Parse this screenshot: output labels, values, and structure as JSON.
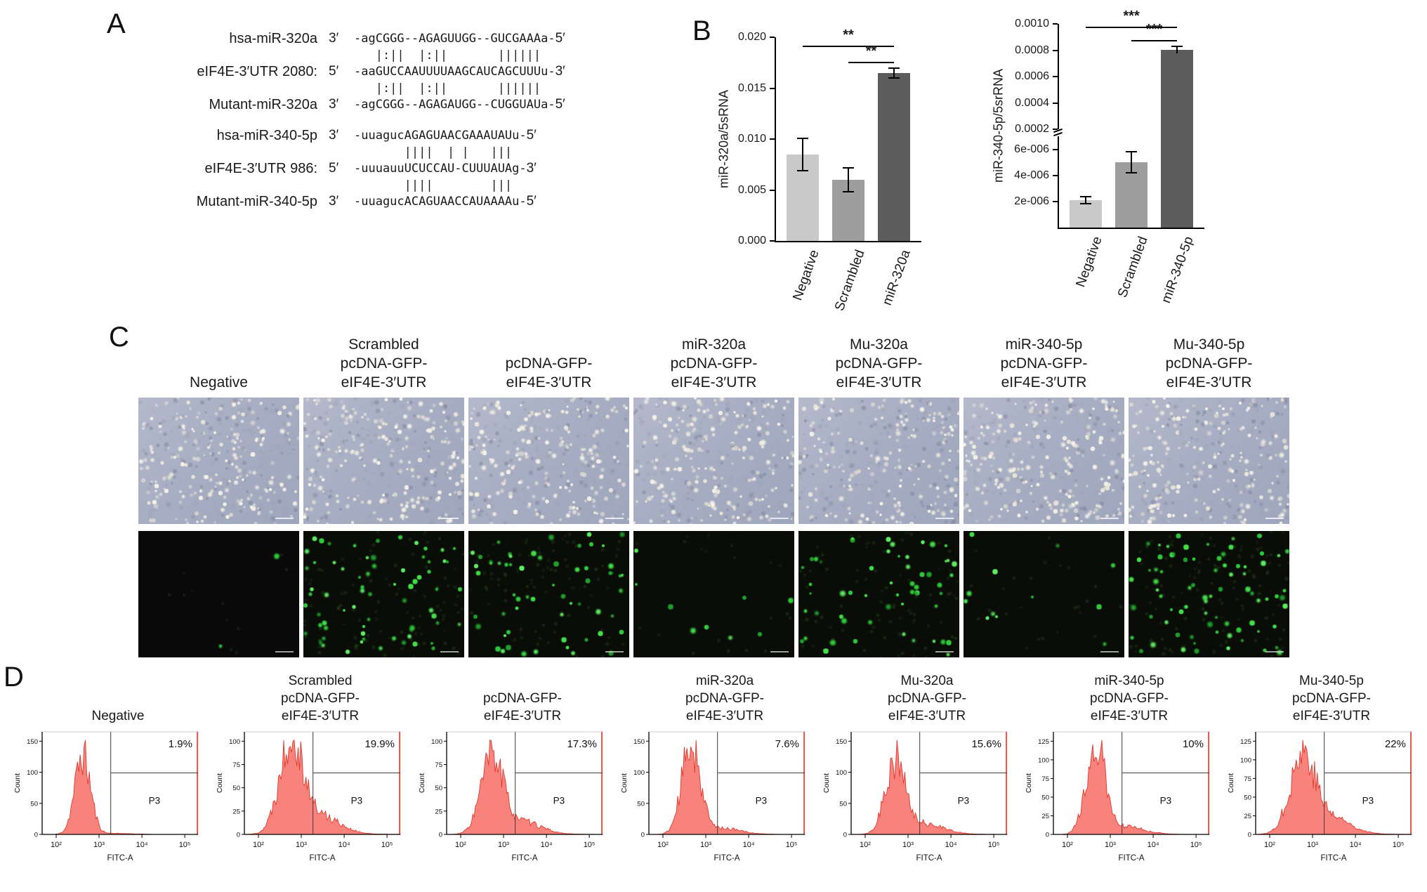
{
  "panels": {
    "a": "A",
    "b": "B",
    "c": "C",
    "d": "D"
  },
  "colors": {
    "bar_light": "#c9c9c9",
    "bar_mid": "#9e9e9e",
    "bar_dark": "#5c5c5c",
    "gfp_green": "#3fe04a",
    "histogram_fill": "#f8837c",
    "histogram_stroke": "#e03a2e",
    "brightfield_base": "#a9afc3",
    "axis": "#000000"
  },
  "panel_a": {
    "rows": [
      {
        "type": "seq",
        "name": "hsa-miR-320a",
        "left": "3′",
        "seq": "-agCGGG--AGAGUUGG--GUCGAAAa-",
        "right": "5′"
      },
      {
        "type": "match",
        "marks": "   |:||  |:||       ||||||"
      },
      {
        "type": "seq",
        "name": "eIF4E-3′UTR 2080:",
        "left": "5′",
        "seq": "-aaGUCCAAUUUUAAGCAUCAGCUUUu-",
        "right": "3′"
      },
      {
        "type": "match",
        "marks": "   |:||  |:||       ||||||"
      },
      {
        "type": "seq",
        "name": "Mutant-miR-320a",
        "left": "3′",
        "seq": "-agCGGG--AGAGAUGG--CUGGUAUa-",
        "right": "5′"
      },
      {
        "type": "spacer"
      },
      {
        "type": "seq",
        "name": "hsa-miR-340-5p",
        "left": "3′",
        "seq": "-uuagucAGAGUAACGAAAUAUu-",
        "right": "5′"
      },
      {
        "type": "match",
        "marks": "       ||||  | |   |||"
      },
      {
        "type": "seq",
        "name": "eIF4E-3′UTR 986:",
        "left": "5′",
        "seq": "-uuuauuUCUCCAU-CUUUAUAg-",
        "right": "3′"
      },
      {
        "type": "match",
        "marks": "       ||||        |||"
      },
      {
        "type": "seq",
        "name": "Mutant-miR-340-5p",
        "left": "3′",
        "seq": "-uuagucACAGUAACCAUAAAAu-",
        "right": "5′"
      }
    ]
  },
  "chart_data": [
    {
      "type": "bar",
      "id": "mir320a",
      "title": "",
      "xlabel": "",
      "ylabel": "miR-320a/5sRNA",
      "categories": [
        "Negative",
        "Scrambled",
        "miR-320a"
      ],
      "values": [
        0.0085,
        0.006,
        0.0165
      ],
      "errors": [
        0.0016,
        0.0012,
        0.0005
      ],
      "ylim": [
        0,
        0.02
      ],
      "yticks": [
        0,
        0.005,
        0.01,
        0.015,
        0.02
      ],
      "ytick_labels": [
        "0.000",
        "0.005",
        "0.010",
        "0.015",
        "0.020"
      ],
      "bar_colors": [
        "#c9c9c9",
        "#9e9e9e",
        "#5c5c5c"
      ],
      "grid": false,
      "legend": null,
      "significance": [
        {
          "from": 0,
          "to": 2,
          "label": "**",
          "level": 0.0192
        },
        {
          "from": 1,
          "to": 2,
          "label": "**",
          "level": 0.0176
        }
      ]
    },
    {
      "type": "bar",
      "id": "mir340-5p",
      "title": "",
      "xlabel": "",
      "ylabel": "miR-340-5p/5srRNA",
      "categories": [
        "Negative",
        "Scrambled",
        "miR-340-5p"
      ],
      "values": [
        2.1e-06,
        5e-06,
        0.000805
      ],
      "errors": [
        2.5e-07,
        8e-07,
        4e-06
      ],
      "broken_axis": true,
      "upper_ylim": [
        0.0002,
        0.001
      ],
      "upper_ytick_values": [
        0.0002,
        0.0004,
        0.0006,
        0.0008,
        0.001
      ],
      "upper_ytick_labels": [
        "0.0002",
        "0.0004",
        "0.0006",
        "0.0008",
        "0.0010"
      ],
      "lower_ylim": [
        0,
        7e-06
      ],
      "lower_ytick_values": [
        2e-06,
        4e-06,
        6e-06
      ],
      "lower_ytick_labels": [
        "2e-006",
        "4e-006",
        "6e-006"
      ],
      "bar_colors": [
        "#c9c9c9",
        "#9e9e9e",
        "#5c5c5c"
      ],
      "grid": false,
      "legend": null,
      "significance": [
        {
          "from": 0,
          "to": 2,
          "label": "***",
          "level": 0.00098
        },
        {
          "from": 1,
          "to": 2,
          "label": "***",
          "level": 0.00088
        }
      ]
    },
    {
      "type": "histogram-set",
      "id": "flow-cytometry",
      "xlabel": "FITC-A",
      "ylabel": "Count",
      "gate_label": "P3",
      "xticks": [
        "10²",
        "10³",
        "10⁴",
        "10⁵"
      ],
      "panels": [
        {
          "title_lines": [
            "Negative"
          ],
          "percent": "1.9%",
          "yticks": [
            0,
            50,
            100,
            150
          ],
          "peak": 0.26,
          "sigma": 0.05,
          "tail": 0.015,
          "seed": 11
        },
        {
          "title_lines": [
            "Scrambled",
            "pcDNA-GFP-",
            "eIF4E-3′UTR"
          ],
          "percent": "19.9%",
          "yticks": [
            0,
            25,
            50,
            75,
            100
          ],
          "peak": 0.3,
          "sigma": 0.075,
          "tail": 0.22,
          "seed": 22
        },
        {
          "title_lines": [
            "pcDNA-GFP-",
            "eIF4E-3′UTR"
          ],
          "percent": "17.3%",
          "yticks": [
            0,
            25,
            50,
            75,
            100
          ],
          "peak": 0.29,
          "sigma": 0.07,
          "tail": 0.19,
          "seed": 33
        },
        {
          "title_lines": [
            "miR-320a",
            "pcDNA-GFP-",
            "eIF4E-3′UTR"
          ],
          "percent": "7.6%",
          "yticks": [
            0,
            50,
            100,
            150
          ],
          "peak": 0.27,
          "sigma": 0.058,
          "tail": 0.08,
          "seed": 44
        },
        {
          "title_lines": [
            "Mu-320a",
            "pcDNA-GFP-",
            "eIF4E-3′UTR"
          ],
          "percent": "15.6%",
          "yticks": [
            0,
            50,
            100,
            150
          ],
          "peak": 0.28,
          "sigma": 0.062,
          "tail": 0.17,
          "seed": 55
        },
        {
          "title_lines": [
            "miR-340-5p",
            "pcDNA-GFP-",
            "eIF4E-3′UTR"
          ],
          "percent": "10%",
          "yticks": [
            0,
            25,
            50,
            75,
            100,
            125
          ],
          "peak": 0.27,
          "sigma": 0.06,
          "tail": 0.1,
          "seed": 66
        },
        {
          "title_lines": [
            "Mu-340-5p",
            "pcDNA-GFP-",
            "eIF4E-3′UTR"
          ],
          "percent": "22%",
          "yticks": [
            0,
            25,
            50,
            75,
            100,
            125
          ],
          "peak": 0.3,
          "sigma": 0.08,
          "tail": 0.24,
          "seed": 77
        }
      ]
    }
  ],
  "panel_c": {
    "columns": [
      {
        "title_lines": [
          "Negative"
        ],
        "gfp_count": 2
      },
      {
        "title_lines": [
          "Scrambled",
          "pcDNA-GFP-",
          "eIF4E-3′UTR"
        ],
        "gfp_count": 70
      },
      {
        "title_lines": [
          "pcDNA-GFP-",
          "eIF4E-3′UTR"
        ],
        "gfp_count": 60
      },
      {
        "title_lines": [
          "miR-320a",
          "pcDNA-GFP-",
          "eIF4E-3′UTR"
        ],
        "gfp_count": 9
      },
      {
        "title_lines": [
          "Mu-320a",
          "pcDNA-GFP-",
          "eIF4E-3′UTR"
        ],
        "gfp_count": 55
      },
      {
        "title_lines": [
          "miR-340-5p",
          "pcDNA-GFP-",
          "eIF4E-3′UTR"
        ],
        "gfp_count": 12
      },
      {
        "title_lines": [
          "Mu-340-5p",
          "pcDNA-GFP-",
          "eIF4E-3′UTR"
        ],
        "gfp_count": 78
      }
    ]
  }
}
